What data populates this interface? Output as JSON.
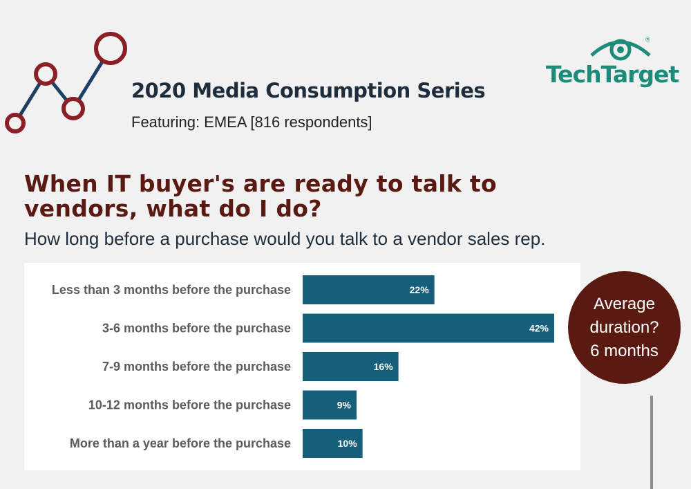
{
  "header": {
    "series_title": "2020 Media Consumption Series",
    "featuring": "Featuring:  EMEA [816 respondents]"
  },
  "brand": {
    "name": "TechTarget",
    "registered": "®",
    "color": "#1b8b7a"
  },
  "logo": {
    "icon": "line-chart-circles-icon",
    "accent": "#8b1e26",
    "line": "#1d3f63"
  },
  "headline": "When IT buyer's are ready to talk to vendors, what do I do?",
  "question": "How long before a purchase would you talk to a vendor sales rep.",
  "average": {
    "line1": "Average",
    "line2": "duration?",
    "line3": "6 months",
    "color": "#5a1a12"
  },
  "chart_data": {
    "type": "bar",
    "orientation": "horizontal",
    "categories": [
      "Less than 3 months before the purchase",
      "3-6 months before the purchase",
      "7-9 months before the purchase",
      "10-12 months before the purchase",
      "More than a year before the purchase"
    ],
    "values": [
      22,
      42,
      16,
      9,
      10
    ],
    "value_labels": [
      "22%",
      "42%",
      "16%",
      "9%",
      "10%"
    ],
    "xlim": [
      0,
      42
    ],
    "grid": false,
    "bar_color": "#17607c"
  }
}
